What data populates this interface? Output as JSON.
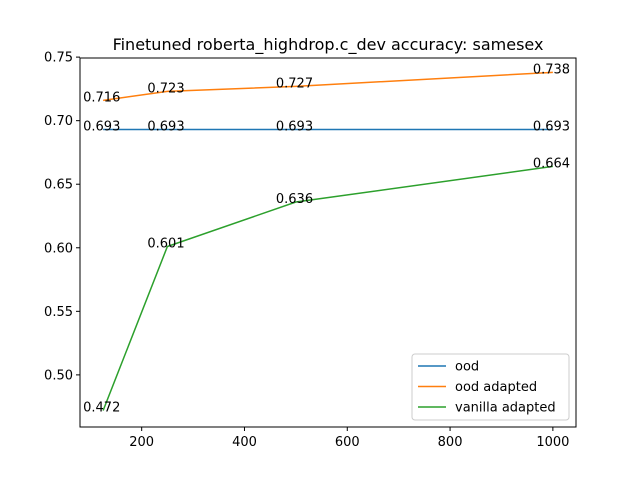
{
  "chart_data": {
    "type": "line",
    "title": "Finetuned roberta_highdrop.c_dev accuracy: samesex",
    "xlabel": "",
    "ylabel": "",
    "x": [
      125,
      250,
      500,
      1000
    ],
    "xlim": [
      80,
      1045
    ],
    "ylim": [
      0.459,
      0.7493
    ],
    "xticks": [
      200,
      400,
      600,
      800,
      1000
    ],
    "xtick_labels": [
      "200",
      "400",
      "600",
      "800",
      "1000"
    ],
    "yticks": [
      0.5,
      0.55,
      0.6,
      0.65,
      0.7,
      0.75
    ],
    "ytick_labels": [
      "0.50",
      "0.55",
      "0.60",
      "0.65",
      "0.70",
      "0.75"
    ],
    "grid": false,
    "legend_position": "lower-right",
    "series": [
      {
        "name": "ood",
        "color": "#1f77b4",
        "values": [
          0.693,
          0.693,
          0.693,
          0.693
        ],
        "labels": [
          "0.693",
          "0.693",
          "0.693",
          "0.693"
        ]
      },
      {
        "name": "ood adapted",
        "color": "#ff7f0e",
        "values": [
          0.716,
          0.723,
          0.727,
          0.738
        ],
        "labels": [
          "0.716",
          "0.723",
          "0.727",
          "0.738"
        ]
      },
      {
        "name": "vanilla adapted",
        "color": "#2ca02c",
        "values": [
          0.472,
          0.601,
          0.636,
          0.664
        ],
        "labels": [
          "0.472",
          "0.601",
          "0.636",
          "0.664"
        ]
      }
    ]
  }
}
